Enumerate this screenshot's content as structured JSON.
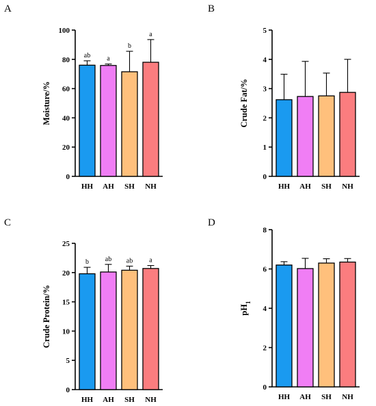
{
  "colors": {
    "HH": "#1a9af0",
    "AH": "#f07ef5",
    "SH": "#ffc07c",
    "NH": "#fb7d7f"
  },
  "chart_data": [
    {
      "panel": "A",
      "type": "bar",
      "ylabel": "Moisture/%",
      "categories": [
        "HH",
        "AH",
        "SH",
        "NH"
      ],
      "values": [
        76,
        75.8,
        71.5,
        78
      ],
      "errors": [
        3,
        1,
        14,
        15.5
      ],
      "significance": [
        "ab",
        "a",
        "b",
        "a"
      ],
      "ylim": [
        0,
        100
      ],
      "yticks": [
        0,
        20,
        40,
        60,
        80,
        100
      ]
    },
    {
      "panel": "B",
      "type": "bar",
      "ylabel": "Crude Fat/%",
      "categories": [
        "HH",
        "AH",
        "SH",
        "NH"
      ],
      "values": [
        2.62,
        2.73,
        2.75,
        2.87
      ],
      "errors": [
        0.87,
        1.2,
        0.78,
        1.13
      ],
      "significance": [
        "",
        "",
        "",
        ""
      ],
      "ylim": [
        0,
        5
      ],
      "yticks": [
        0,
        1,
        2,
        3,
        4,
        5
      ]
    },
    {
      "panel": "C",
      "type": "bar",
      "ylabel": "Crude Protein/%",
      "categories": [
        "HH",
        "AH",
        "SH",
        "NH"
      ],
      "values": [
        19.8,
        20.1,
        20.4,
        20.7
      ],
      "errors": [
        1.1,
        1.3,
        0.7,
        0.5
      ],
      "significance": [
        "b",
        "ab",
        "ab",
        "a"
      ],
      "ylim": [
        0,
        25
      ],
      "yticks": [
        0,
        5,
        10,
        15,
        20,
        25
      ]
    },
    {
      "panel": "D",
      "type": "bar",
      "ylabel": "pH",
      "ylabel_sub": "1",
      "categories": [
        "HH",
        "AH",
        "SH",
        "NH"
      ],
      "values": [
        6.2,
        6.02,
        6.3,
        6.35
      ],
      "errors": [
        0.17,
        0.52,
        0.22,
        0.18
      ],
      "significance": [
        "",
        "",
        "",
        ""
      ],
      "ylim": [
        0,
        8
      ],
      "yticks": [
        0,
        2,
        4,
        6,
        8
      ]
    }
  ]
}
